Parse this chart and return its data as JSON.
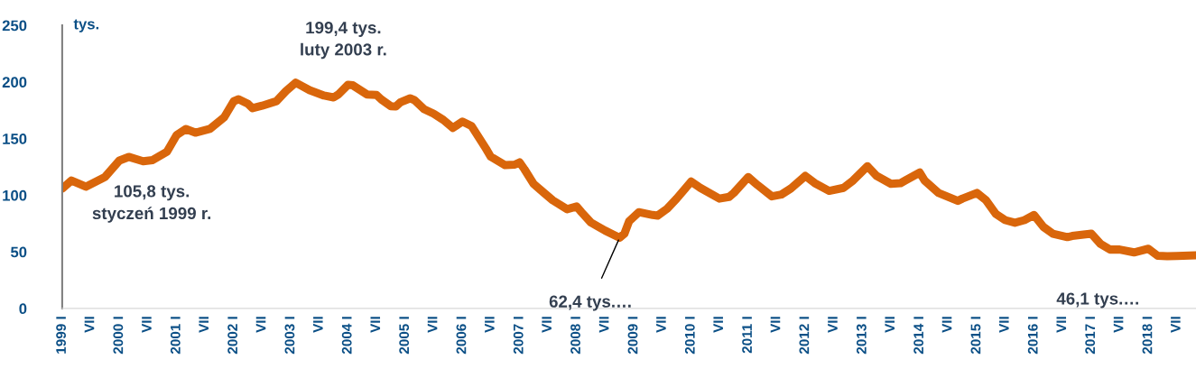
{
  "chart_data": {
    "type": "line",
    "ylabel": "tys.",
    "series": [
      {
        "color": "#d9660b",
        "x": [
          "1999-01",
          "1999-03",
          "1999-06",
          "1999-10",
          "2000-01",
          "2000-03",
          "2000-06",
          "2000-08",
          "2000-11",
          "2001-01",
          "2001-03",
          "2001-05",
          "2001-08",
          "2001-11",
          "2002-01",
          "2002-02",
          "2002-04",
          "2002-05",
          "2002-07",
          "2002-10",
          "2002-12",
          "2003-02",
          "2003-05",
          "2003-08",
          "2003-10",
          "2003-11",
          "2004-01",
          "2004-02",
          "2004-05",
          "2004-07",
          "2004-08",
          "2004-10",
          "2004-11",
          "2004-12",
          "2005-02",
          "2005-03",
          "2005-05",
          "2005-07",
          "2005-09",
          "2005-11",
          "2006-01",
          "2006-03",
          "2006-06",
          "2006-07",
          "2006-10",
          "2006-12",
          "2007-01",
          "2007-02",
          "2007-04",
          "2007-06",
          "2007-08",
          "2007-11",
          "2008-01",
          "2008-02",
          "2008-04",
          "2008-07",
          "2008-10",
          "2008-11",
          "2008-12",
          "2009-02",
          "2009-05",
          "2009-06",
          "2009-08",
          "2009-10",
          "2010-01",
          "2010-03",
          "2010-07",
          "2010-09",
          "2010-10",
          "2011-01",
          "2011-03",
          "2011-06",
          "2011-08",
          "2011-10",
          "2012-01",
          "2012-03",
          "2012-06",
          "2012-09",
          "2012-11",
          "2013-02",
          "2013-04",
          "2013-07",
          "2013-09",
          "2013-10",
          "2014-01",
          "2014-02",
          "2014-05",
          "2014-09",
          "2014-10",
          "2015-01",
          "2015-03",
          "2015-05",
          "2015-07",
          "2015-09",
          "2015-11",
          "2016-01",
          "2016-03",
          "2016-05",
          "2016-08",
          "2016-09",
          "2017-01",
          "2017-03",
          "2017-05",
          "2017-07",
          "2017-10",
          "2018-01",
          "2018-03",
          "2018-05",
          "2018-07",
          "2018-11"
        ],
        "values": [
          105.8,
          113,
          107.5,
          116,
          130.6,
          133.8,
          130,
          131,
          138.5,
          153,
          158.5,
          155.2,
          158.5,
          168.8,
          183,
          184.7,
          180.7,
          176.8,
          179,
          183,
          192,
          199.4,
          192.7,
          188,
          186.3,
          189,
          197.5,
          197,
          189,
          188.5,
          184.5,
          178.6,
          178.3,
          182,
          185.5,
          184,
          176,
          172,
          166.5,
          159.4,
          165,
          161,
          141,
          134,
          126.5,
          127,
          129,
          123,
          110,
          102.7,
          95.5,
          87.6,
          90,
          85,
          75.9,
          68.7,
          62.4,
          66,
          77,
          85,
          82.5,
          82,
          88,
          97,
          112,
          106.5,
          97,
          98.5,
          102,
          116,
          109,
          99,
          100.6,
          106,
          117,
          110.7,
          103.8,
          106.5,
          113,
          125.6,
          117,
          110,
          110.7,
          113,
          120,
          113,
          102,
          95,
          97,
          102,
          95.5,
          83.6,
          78,
          75.7,
          78,
          82.5,
          72,
          66,
          63,
          64,
          66,
          57,
          52,
          52,
          49.5,
          52.7,
          46.5,
          46.1,
          46.3,
          47
        ]
      }
    ],
    "xlim": [
      "1999-01",
      "2018-11"
    ],
    "xticks": [
      {
        "value": "1999-01",
        "label": "1999 I"
      },
      {
        "value": "1999-07",
        "label": "VII"
      },
      {
        "value": "2000-01",
        "label": "2000 I"
      },
      {
        "value": "2000-07",
        "label": "VII"
      },
      {
        "value": "2001-01",
        "label": "2001 I"
      },
      {
        "value": "2001-07",
        "label": "VII"
      },
      {
        "value": "2002-01",
        "label": "2002 I"
      },
      {
        "value": "2002-07",
        "label": "VII"
      },
      {
        "value": "2003-01",
        "label": "2003 I"
      },
      {
        "value": "2003-07",
        "label": "VII"
      },
      {
        "value": "2004-01",
        "label": "2004 I"
      },
      {
        "value": "2004-07",
        "label": "VII"
      },
      {
        "value": "2005-01",
        "label": "2005 I"
      },
      {
        "value": "2005-07",
        "label": "VII"
      },
      {
        "value": "2006-01",
        "label": "2006 I"
      },
      {
        "value": "2006-07",
        "label": "VII"
      },
      {
        "value": "2007-01",
        "label": "2007 I"
      },
      {
        "value": "2007-07",
        "label": "VII"
      },
      {
        "value": "2008-01",
        "label": "2008 I"
      },
      {
        "value": "2008-07",
        "label": "VII"
      },
      {
        "value": "2009-01",
        "label": "2009 I"
      },
      {
        "value": "2009-07",
        "label": "VII"
      },
      {
        "value": "2010-01",
        "label": "2010 I"
      },
      {
        "value": "2010-07",
        "label": "VII"
      },
      {
        "value": "2011-01",
        "label": "2011 I"
      },
      {
        "value": "2011-07",
        "label": "VII"
      },
      {
        "value": "2012-01",
        "label": "2012 I"
      },
      {
        "value": "2012-07",
        "label": "VII"
      },
      {
        "value": "2013-01",
        "label": "2013 I"
      },
      {
        "value": "2013-07",
        "label": "VII"
      },
      {
        "value": "2014-01",
        "label": "2014 I"
      },
      {
        "value": "2014-07",
        "label": "VII"
      },
      {
        "value": "2015-01",
        "label": "2015 I"
      },
      {
        "value": "2015-07",
        "label": "VII"
      },
      {
        "value": "2016-01",
        "label": "2016 I"
      },
      {
        "value": "2016-07",
        "label": "VII"
      },
      {
        "value": "2017-01",
        "label": "2017 I"
      },
      {
        "value": "2017-07",
        "label": "VII"
      },
      {
        "value": "2018-01",
        "label": "2018 I"
      },
      {
        "value": "2018-07",
        "label": "VII"
      }
    ],
    "ylim": [
      0,
      250
    ],
    "yticks": [
      0,
      50,
      100,
      150,
      200,
      250
    ],
    "grid": false,
    "line_style": "solid",
    "marker": "none",
    "annotations": [
      "105,8 tys.\nstyczeń 1999 r.",
      {
        "text": "199,4 tys.\nluty 2003 r.",
        "x": "2003-02",
        "y": 199.4
      },
      {
        "text": "62,4 tys.…",
        "x": "2008-10",
        "y": 62.4
      },
      {
        "text": "46,1 tys.…",
        "x": "2018-05",
        "y": 46.1
      }
    ]
  }
}
